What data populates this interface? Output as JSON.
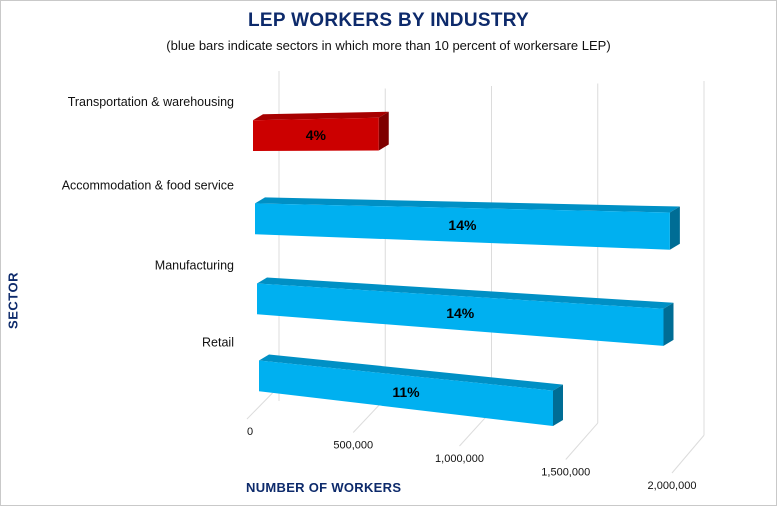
{
  "chart_data": {
    "type": "bar",
    "orientation": "horizontal",
    "title": "LEP WORKERS BY INDUSTRY",
    "subtitle": "(blue bars indicate sectors in which more than 10 percent of workersare LEP)",
    "xlabel": "NUMBER OF WORKERS",
    "ylabel": "SECTOR",
    "xlim": [
      0,
      2000000
    ],
    "x_ticks": [
      "0",
      "500,000",
      "1,000,000",
      "1,500,000",
      "2,000,000"
    ],
    "x_tick_values": [
      0,
      500000,
      1000000,
      1500000,
      2000000
    ],
    "categories": [
      "Transportation & warehousing",
      "Accommodation & food service",
      "Manufacturing",
      "Retail"
    ],
    "values": [
      620000,
      1990000,
      1960000,
      1440000
    ],
    "data_labels": [
      "4%",
      "14%",
      "14%",
      "11%"
    ],
    "bar_colors": [
      "#cc0000",
      "#00b0f0",
      "#00b0f0",
      "#00b0f0"
    ],
    "grid": true,
    "style": "3d"
  }
}
